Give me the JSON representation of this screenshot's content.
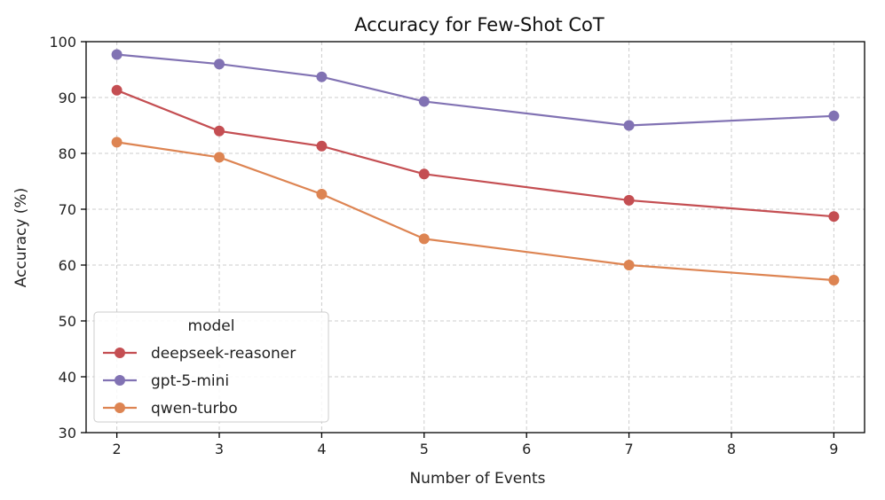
{
  "chart_data": {
    "type": "line",
    "title": "Accuracy for Few-Shot CoT",
    "xlabel": "Number of Events",
    "ylabel": "Accuracy (%)",
    "xlim": [
      1.7,
      9.3
    ],
    "ylim": [
      30,
      100
    ],
    "xticks": [
      2,
      3,
      4,
      5,
      6,
      7,
      8,
      9
    ],
    "yticks": [
      30,
      40,
      50,
      60,
      70,
      80,
      90,
      100
    ],
    "grid": true,
    "legend": {
      "title": "model",
      "placement": "lower-left"
    },
    "series": [
      {
        "name": "deepseek-reasoner",
        "color": "#c44e52",
        "x": [
          2,
          3,
          4,
          5,
          7,
          9
        ],
        "values": [
          91.3,
          84.0,
          81.3,
          76.3,
          71.6,
          68.7
        ]
      },
      {
        "name": "gpt-5-mini",
        "color": "#8172b3",
        "x": [
          2,
          3,
          4,
          5,
          7,
          9
        ],
        "values": [
          97.7,
          96.0,
          93.7,
          89.3,
          85.0,
          86.7
        ]
      },
      {
        "name": "qwen-turbo",
        "color": "#dd8452",
        "x": [
          2,
          3,
          4,
          5,
          7,
          9
        ],
        "values": [
          82.0,
          79.3,
          72.7,
          64.7,
          60.0,
          57.3
        ]
      }
    ]
  }
}
